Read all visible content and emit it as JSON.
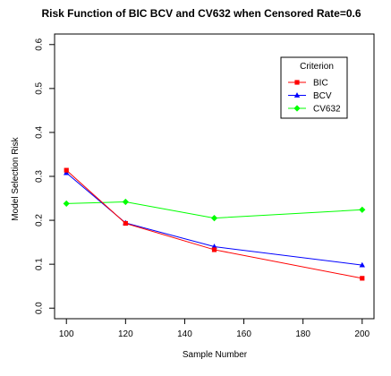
{
  "chart_data": {
    "type": "line",
    "title": "Risk Function of BIC BCV and CV632 when Censored Rate=0.6",
    "xlabel": "Sample Number",
    "ylabel": "Model Selection Risk",
    "x": [
      100,
      120,
      150,
      200
    ],
    "xlim": [
      96,
      204
    ],
    "ylim": [
      -0.024,
      0.624
    ],
    "xticks": [
      "100",
      "120",
      "140",
      "160",
      "180",
      "200"
    ],
    "yticks": [
      "0.0",
      "0.1",
      "0.2",
      "0.3",
      "0.4",
      "0.5",
      "0.6"
    ],
    "grid": false,
    "legend": {
      "title": "Criterion",
      "position": "top-right"
    },
    "series": [
      {
        "name": "BIC",
        "values": [
          0.314,
          0.193,
          0.133,
          0.068
        ],
        "color": "#ff0000",
        "marker": "square"
      },
      {
        "name": "BCV",
        "values": [
          0.308,
          0.194,
          0.14,
          0.098
        ],
        "color": "#0000ff",
        "marker": "triangle"
      },
      {
        "name": "CV632",
        "values": [
          0.238,
          0.242,
          0.205,
          0.224
        ],
        "color": "#00ff00",
        "marker": "diamond"
      }
    ]
  }
}
